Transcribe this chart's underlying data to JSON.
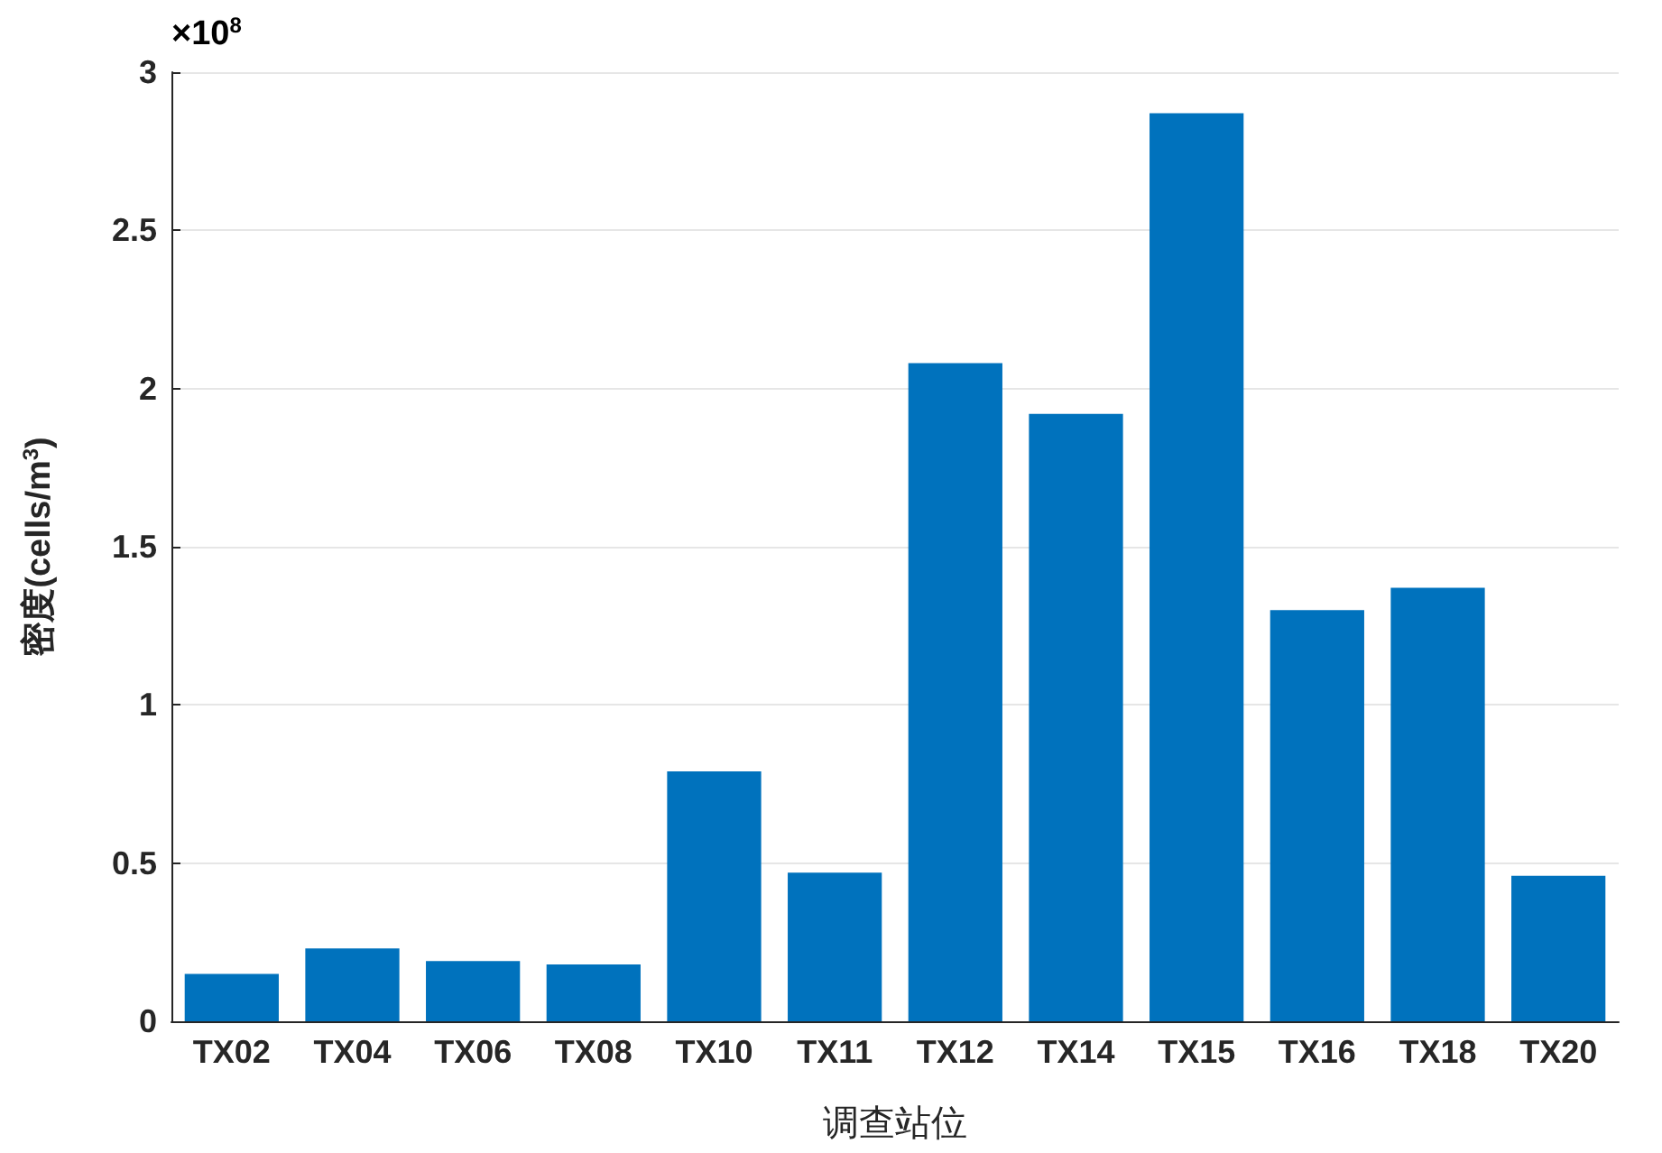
{
  "chart_data": {
    "type": "bar",
    "categories": [
      "TX02",
      "TX04",
      "TX06",
      "TX08",
      "TX10",
      "TX11",
      "TX12",
      "TX14",
      "TX15",
      "TX16",
      "TX18",
      "TX20"
    ],
    "values": [
      0.15,
      0.23,
      0.19,
      0.18,
      0.79,
      0.47,
      2.08,
      1.92,
      2.87,
      1.3,
      1.37,
      0.46
    ],
    "color": "#0072bd",
    "xlabel": "调查站位",
    "ylabel": "密度(cells/m$^{3}$)",
    "annotations": [
      "×10$^{8}$"
    ],
    "ylim": [
      0,
      3
    ],
    "yticks": [
      0,
      0.5,
      1,
      1.5,
      2,
      2.5,
      3
    ],
    "grid": "y"
  }
}
